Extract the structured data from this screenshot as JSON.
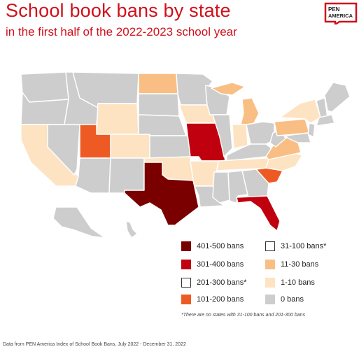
{
  "title": "School book bans by state",
  "subtitle": "in the first half of the 2022-2023 school year",
  "logo": {
    "line1": "PEN",
    "line2": "AMERICA",
    "color": "#d0111b"
  },
  "colors": {
    "b401_500": "#7a0000",
    "b301_400": "#c0000f",
    "b201_300": "#ffffff",
    "b101_200": "#ee5a24",
    "b31_100": "#ffffff",
    "b11_30": "#f9be84",
    "b1_10": "#fde3c2",
    "b0": "#cdcdcd"
  },
  "legend": [
    {
      "label": "401-500 bans",
      "color": "#7a0000",
      "outlined": false
    },
    {
      "label": "301-400 bans",
      "color": "#c0000f",
      "outlined": false
    },
    {
      "label": "201-300 bans*",
      "color": "#ffffff",
      "outlined": true
    },
    {
      "label": "101-200 bans",
      "color": "#ee5a24",
      "outlined": false
    },
    {
      "label": "31-100 bans*",
      "color": "#ffffff",
      "outlined": true
    },
    {
      "label": "11-30 bans",
      "color": "#f9be84",
      "outlined": false
    },
    {
      "label": "1-10 bans",
      "color": "#fde3c2",
      "outlined": false
    },
    {
      "label": "0 bans",
      "color": "#cdcdcd",
      "outlined": false
    }
  ],
  "footnote": "*There are no states with 31-100 bans and 201-300 bans",
  "source": "Data from PEN America Index of School Book Bans, July 2022 - December 31, 2022"
}
